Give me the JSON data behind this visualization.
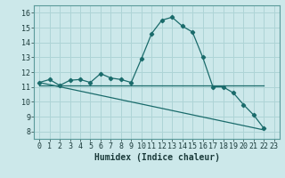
{
  "xlabel": "Humidex (Indice chaleur)",
  "background_color": "#cce8ea",
  "grid_color": "#aed4d6",
  "line_color": "#1a6b6b",
  "xlim": [
    -0.5,
    23.5
  ],
  "ylim": [
    7.5,
    16.5
  ],
  "xticks": [
    0,
    1,
    2,
    3,
    4,
    5,
    6,
    7,
    8,
    9,
    10,
    11,
    12,
    13,
    14,
    15,
    16,
    17,
    18,
    19,
    20,
    21,
    22,
    23
  ],
  "yticks": [
    8,
    9,
    10,
    11,
    12,
    13,
    14,
    15,
    16
  ],
  "main_curve_x": [
    0,
    1,
    2,
    3,
    4,
    5,
    6,
    7,
    8,
    9,
    10,
    11,
    12,
    13,
    14,
    15,
    16,
    17,
    18,
    19,
    20,
    21,
    22
  ],
  "main_curve_y": [
    11.3,
    11.5,
    11.1,
    11.45,
    11.5,
    11.3,
    11.9,
    11.6,
    11.5,
    11.3,
    12.9,
    14.6,
    15.5,
    15.7,
    15.1,
    14.7,
    13.0,
    11.0,
    11.0,
    10.6,
    9.8,
    9.1,
    8.2
  ],
  "flat_line_x": [
    0,
    22
  ],
  "flat_line_y": [
    11.1,
    11.1
  ],
  "decline_line_x": [
    0,
    22
  ],
  "decline_line_y": [
    11.3,
    8.1
  ],
  "tick_fontsize": 6,
  "xlabel_fontsize": 7
}
